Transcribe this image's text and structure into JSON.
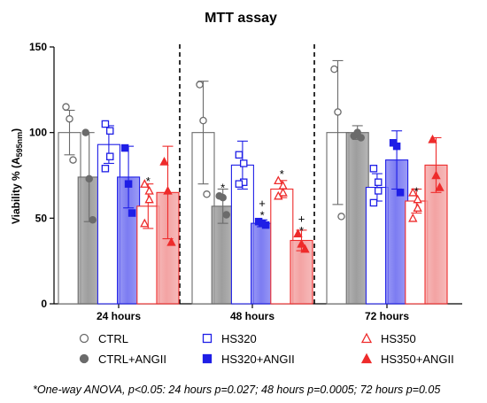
{
  "chart_data": {
    "type": "bar",
    "title": "MTT assay",
    "ylabel": "Viability % (A",
    "ylabel_sub": "595nm",
    "ylabel_close": ")",
    "ylim": [
      0,
      150
    ],
    "yticks": [
      "0",
      "50",
      "100",
      "150"
    ],
    "grid": false,
    "groups": [
      "24 hours",
      "48 hours",
      "72 hours"
    ],
    "series": [
      {
        "name": "CTRL",
        "color": "#6b6b6b",
        "fill": "#ffffff",
        "marker": "circle-open",
        "values": [
          100,
          100,
          100
        ],
        "err": [
          13,
          30,
          42
        ],
        "points": [
          [
            115,
            108,
            84
          ],
          [
            128,
            107,
            64
          ],
          [
            137,
            112,
            51
          ]
        ]
      },
      {
        "name": "CTRL+ANGII",
        "color": "#6b6b6b",
        "fill": "#9e9e9e",
        "marker": "circle-filled",
        "values": [
          74,
          57,
          100
        ],
        "err": [
          26,
          10,
          4
        ],
        "points": [
          [
            100,
            73,
            49
          ],
          [
            63,
            62,
            52
          ],
          [
            98,
            100,
            97
          ]
        ]
      },
      {
        "name": "HS320",
        "color": "#1e1ee6",
        "fill": "#ffffff",
        "marker": "square-open",
        "values": [
          93,
          81,
          68
        ],
        "err": [
          11,
          14,
          8
        ],
        "points": [
          [
            105,
            101,
            86,
            79
          ],
          [
            87,
            82,
            71,
            70
          ],
          [
            79,
            71,
            66,
            59
          ]
        ]
      },
      {
        "name": "HS320+ANGII",
        "color": "#1e1ee6",
        "fill": "#7c7cf2",
        "marker": "square-filled",
        "values": [
          74,
          47,
          84
        ],
        "err": [
          18,
          2,
          17
        ],
        "points": [
          [
            91,
            70,
            53
          ],
          [
            48,
            47,
            46
          ],
          [
            94,
            92,
            65
          ]
        ]
      },
      {
        "name": "HS350",
        "color": "#ee2b2b",
        "fill": "#ffffff",
        "marker": "triangle-open",
        "values": [
          57,
          67,
          60
        ],
        "err": [
          13,
          5,
          7
        ],
        "points": [
          [
            70,
            66,
            61,
            47
          ],
          [
            72,
            69,
            65,
            63
          ],
          [
            65,
            61,
            56,
            50
          ]
        ]
      },
      {
        "name": "HS350+ANGII",
        "color": "#ee2b2b",
        "fill": "#f3a3a3",
        "marker": "triangle-filled",
        "values": [
          65,
          37,
          81
        ],
        "err": [
          27,
          6,
          16
        ],
        "points": [
          [
            83,
            66,
            36
          ],
          [
            41,
            35,
            32
          ],
          [
            96,
            75,
            68
          ]
        ]
      }
    ],
    "annotations": [
      {
        "group": 0,
        "series": 4,
        "text": "*",
        "y": 72
      },
      {
        "group": 1,
        "series": 1,
        "text": "*",
        "y": 68
      },
      {
        "group": 1,
        "series": 3,
        "text": "+",
        "y": 59
      },
      {
        "group": 1,
        "series": 3,
        "text": "*",
        "y": 52
      },
      {
        "group": 1,
        "series": 4,
        "text": "*",
        "y": 76
      },
      {
        "group": 1,
        "series": 5,
        "text": "+",
        "y": 50
      },
      {
        "group": 1,
        "series": 5,
        "text": "*",
        "y": 43
      },
      {
        "group": 2,
        "series": 4,
        "text": "*",
        "y": 66
      }
    ],
    "legend_position": "bottom",
    "footnote": "*One-way ANOVA, p<0.05: 24 hours p=0.027; 48 hours p=0.0005; 72 hours p=0.05"
  }
}
